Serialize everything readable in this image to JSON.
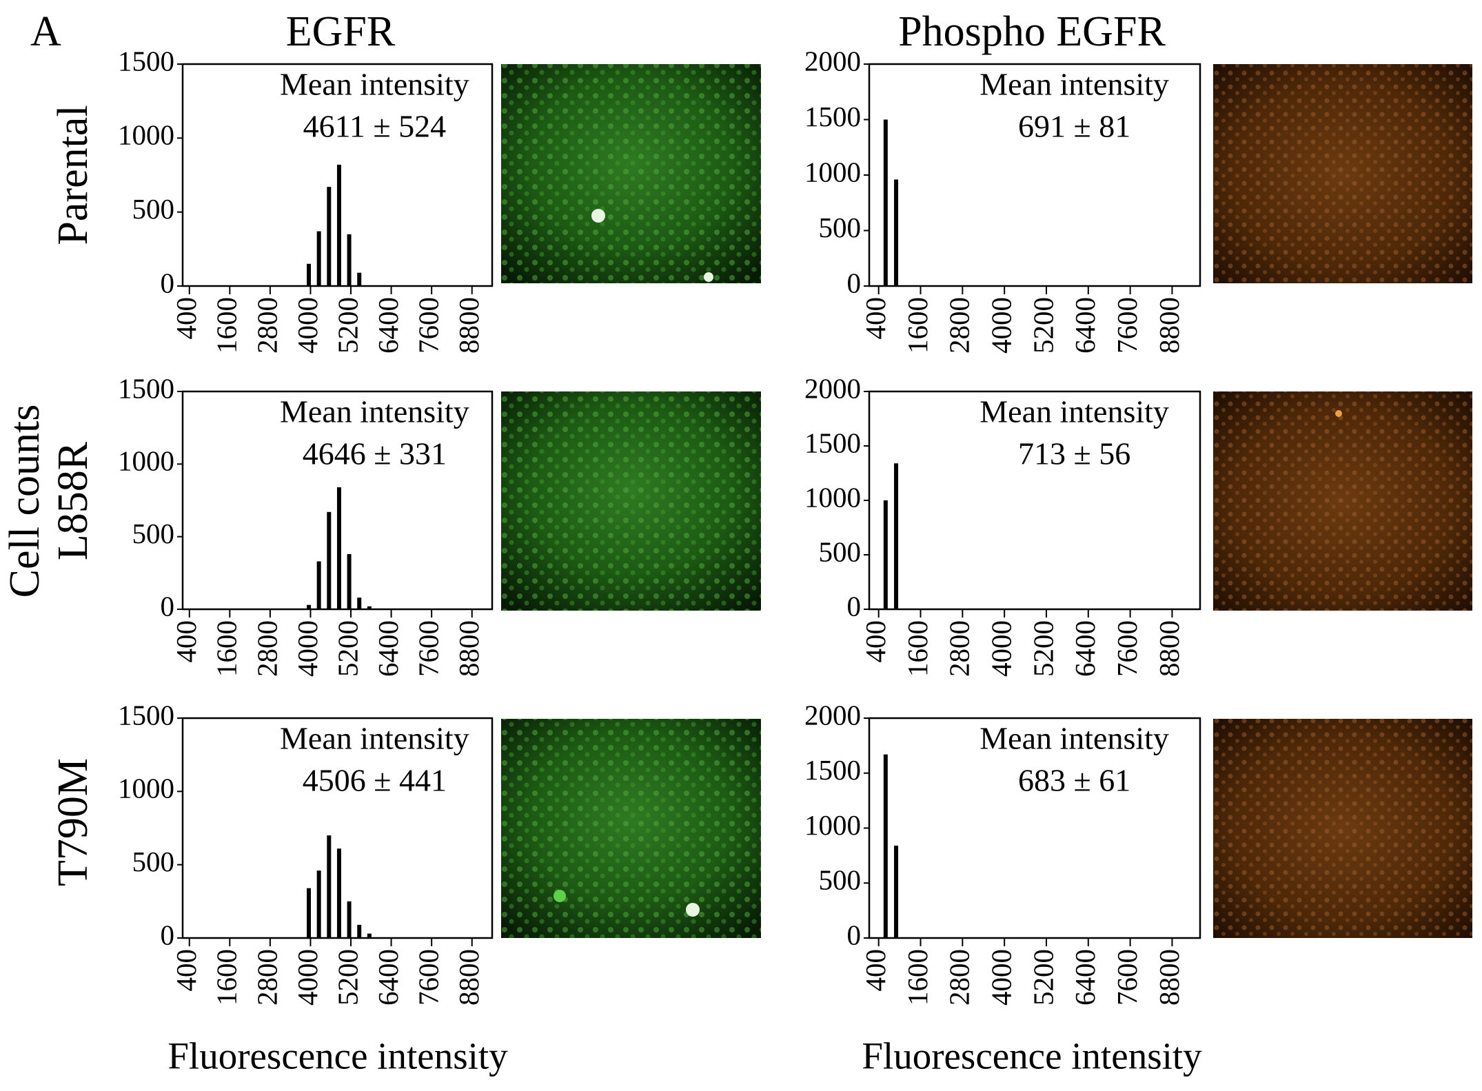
{
  "figure": {
    "panel": "A",
    "columns": [
      "EGFR",
      "Phospho EGFR"
    ],
    "rows": [
      "Parental",
      "L858R",
      "T790M"
    ],
    "y_label": "Cell counts",
    "x_labels": [
      "Fluorescence intensity",
      "Fluorescence intensity"
    ]
  },
  "chart_data": [
    {
      "type": "bar",
      "x": [
        3950,
        4250,
        4550,
        4850,
        5150,
        5450
      ],
      "values": [
        150,
        370,
        670,
        820,
        350,
        90
      ],
      "color": "#000000",
      "xlim": [
        200,
        9400
      ],
      "ylim": [
        0,
        1500
      ],
      "xticks": [
        400,
        1600,
        2800,
        4000,
        5200,
        6400,
        7600,
        8800
      ],
      "yticks": [
        0,
        500,
        1000,
        1500
      ],
      "annotation": [
        "Mean intensity",
        "4611 ± 524"
      ]
    },
    {
      "type": "bar",
      "x": [
        600,
        900
      ],
      "values": [
        1500,
        960
      ],
      "color": "#000000",
      "xlim": [
        130,
        9600
      ],
      "ylim": [
        0,
        2000
      ],
      "xticks": [
        400,
        1600,
        2800,
        4000,
        5200,
        6400,
        7600,
        8800
      ],
      "yticks": [
        0,
        500,
        1000,
        1500,
        2000
      ],
      "annotation": [
        "Mean intensity",
        "691 ± 81"
      ]
    },
    {
      "type": "bar",
      "x": [
        3950,
        4250,
        4550,
        4850,
        5150,
        5450,
        5750
      ],
      "values": [
        30,
        330,
        670,
        840,
        380,
        80,
        20
      ],
      "color": "#000000",
      "xlim": [
        200,
        9400
      ],
      "ylim": [
        0,
        1500
      ],
      "xticks": [
        400,
        1600,
        2800,
        4000,
        5200,
        6400,
        7600,
        8800
      ],
      "yticks": [
        0,
        500,
        1000,
        1500
      ],
      "annotation": [
        "Mean intensity",
        "4646 ± 331"
      ]
    },
    {
      "type": "bar",
      "x": [
        600,
        900
      ],
      "values": [
        1000,
        1340
      ],
      "color": "#000000",
      "xlim": [
        130,
        9600
      ],
      "ylim": [
        0,
        2000
      ],
      "xticks": [
        400,
        1600,
        2800,
        4000,
        5200,
        6400,
        7600,
        8800
      ],
      "yticks": [
        0,
        500,
        1000,
        1500,
        2000
      ],
      "annotation": [
        "Mean intensity",
        "713 ± 56"
      ]
    },
    {
      "type": "bar",
      "x": [
        3950,
        4250,
        4550,
        4850,
        5150,
        5450,
        5750
      ],
      "values": [
        340,
        460,
        700,
        610,
        250,
        90,
        30
      ],
      "color": "#000000",
      "xlim": [
        200,
        9400
      ],
      "ylim": [
        0,
        1500
      ],
      "xticks": [
        400,
        1600,
        2800,
        4000,
        5200,
        6400,
        7600,
        8800
      ],
      "yticks": [
        0,
        500,
        1000,
        1500
      ],
      "annotation": [
        "Mean intensity",
        "4506 ± 441"
      ]
    },
    {
      "type": "bar",
      "x": [
        600,
        900
      ],
      "values": [
        1670,
        840
      ],
      "color": "#000000",
      "xlim": [
        130,
        9600
      ],
      "ylim": [
        0,
        2000
      ],
      "xticks": [
        400,
        1600,
        2800,
        4000,
        5200,
        6400,
        7600,
        8800
      ],
      "yticks": [
        0,
        500,
        1000,
        1500,
        2000
      ],
      "annotation": [
        "Mean intensity",
        "683 ± 61"
      ]
    }
  ]
}
